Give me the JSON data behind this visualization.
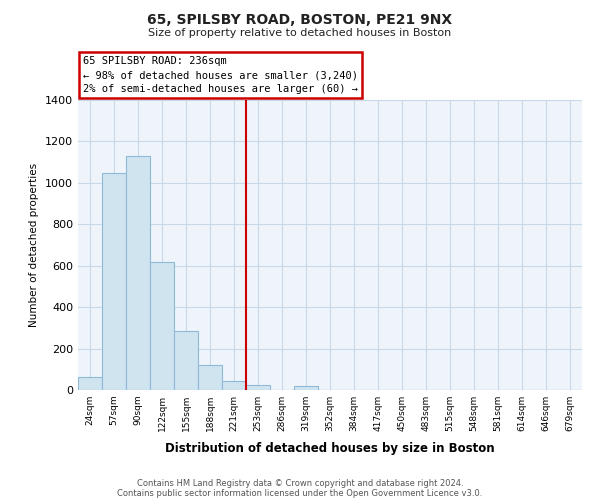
{
  "title": "65, SPILSBY ROAD, BOSTON, PE21 9NX",
  "subtitle": "Size of property relative to detached houses in Boston",
  "xlabel": "Distribution of detached houses by size in Boston",
  "ylabel": "Number of detached properties",
  "bar_labels": [
    "24sqm",
    "57sqm",
    "90sqm",
    "122sqm",
    "155sqm",
    "188sqm",
    "221sqm",
    "253sqm",
    "286sqm",
    "319sqm",
    "352sqm",
    "384sqm",
    "417sqm",
    "450sqm",
    "483sqm",
    "515sqm",
    "548sqm",
    "581sqm",
    "614sqm",
    "646sqm",
    "679sqm"
  ],
  "bar_values": [
    65,
    1050,
    1130,
    620,
    285,
    120,
    45,
    25,
    0,
    20,
    0,
    0,
    0,
    0,
    0,
    0,
    0,
    0,
    0,
    0,
    0
  ],
  "bar_color": "#d0e4f0",
  "bar_edge_color": "#90b8d8",
  "vline_x_index": 7,
  "vline_color": "#cc0000",
  "ylim": [
    0,
    1400
  ],
  "yticks": [
    0,
    200,
    400,
    600,
    800,
    1000,
    1200,
    1400
  ],
  "annotation_title": "65 SPILSBY ROAD: 236sqm",
  "annotation_line1": "← 98% of detached houses are smaller (3,240)",
  "annotation_line2": "2% of semi-detached houses are larger (60) →",
  "footer_line1": "Contains HM Land Registry data © Crown copyright and database right 2024.",
  "footer_line2": "Contains public sector information licensed under the Open Government Licence v3.0.",
  "background_color": "#ffffff",
  "plot_bg_color": "#eef4fa",
  "grid_color": "#c8d8e8"
}
